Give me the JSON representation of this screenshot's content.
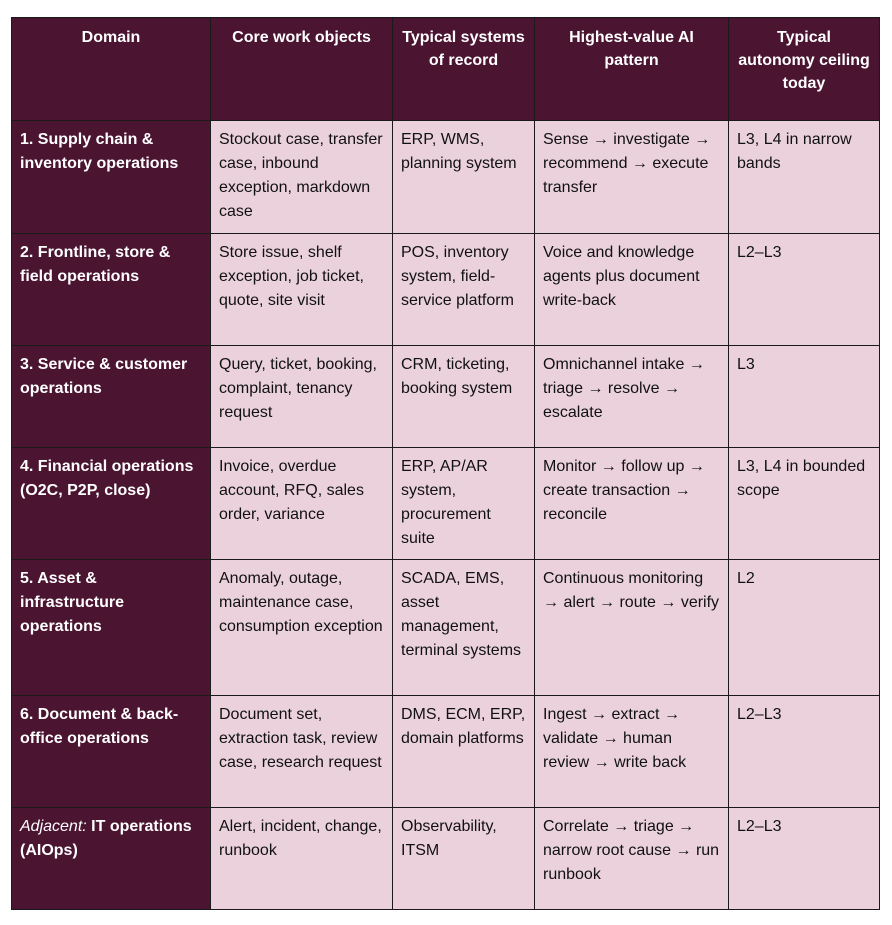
{
  "table": {
    "headers": [
      "Domain",
      "Core work objects",
      "Typical systems of record",
      "Highest-value AI pattern",
      "Typical autonomy ceiling today"
    ],
    "rows": [
      [
        "1. Supply chain & inventory operations",
        "Stockout case, transfer case, inbound exception, markdown case",
        "ERP, WMS, planning system",
        "Sense → investigate → recommend → execute transfer",
        "L3, L4 in narrow bands"
      ],
      [
        "2. Frontline, store & field operations",
        "Store issue, shelf exception, job ticket, quote, site visit",
        "POS, inventory system, field-service platform",
        "Voice and knowledge agents plus document write-back",
        "L2–L3"
      ],
      [
        "3. Service & customer operations",
        "Query, ticket, booking, complaint, tenancy request",
        "CRM, ticketing, booking system",
        "Omnichannel intake → triage → resolve → escalate",
        "L3"
      ],
      [
        "4. Financial operations (O2C, P2P, close)",
        "Invoice, overdue account, RFQ, sales order, variance",
        "ERP, AP/AR system, procurement suite",
        "Monitor → follow up → create transaction → reconcile",
        "L3, L4 in bounded scope"
      ],
      [
        "5. Asset & infrastructure operations",
        "Anomaly, outage, maintenance case, consumption exception",
        "SCADA, EMS, asset management, terminal systems",
        "Continuous monitoring → alert → route → verify",
        "L2"
      ],
      [
        "6. Document & back-office operations",
        "Document set, extraction task, review case, research request",
        "DMS, ECM, ERP, domain platforms",
        "Ingest → extract → validate → human review → write back",
        "L2–L3"
      ],
      [
        {
          "italic": "Adjacent:",
          "text": "IT operations (AIOps)"
        },
        "Alert, incident, change, runbook",
        "Observability, ITSM",
        "Correlate → triage → narrow root cause → run runbook",
        "L2–L3"
      ]
    ]
  }
}
